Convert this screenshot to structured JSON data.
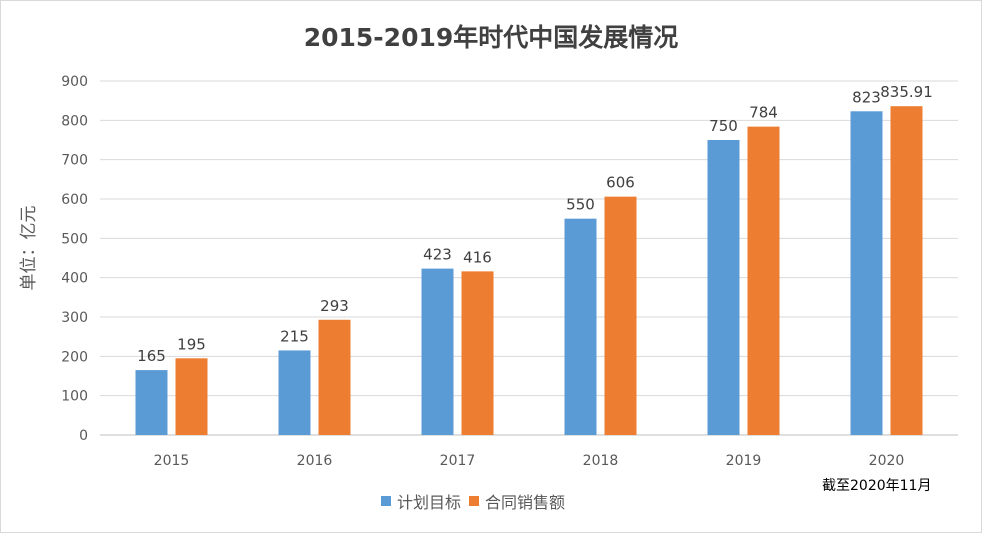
{
  "colors": {
    "plan": "#5b9bd5",
    "sales": "#ed7d31",
    "grid": "#d9d9d9",
    "axis": "#bfbfbf"
  },
  "chart_data": {
    "type": "bar",
    "title": "2015-2019年时代中国发展情况",
    "ylabel": "单位：亿元",
    "xlabel": "",
    "categories": [
      "2015",
      "2016",
      "2017",
      "2018",
      "2019",
      "2020"
    ],
    "series": [
      {
        "name": "计划目标",
        "values": [
          165,
          215,
          423,
          550,
          750,
          823
        ],
        "labels": [
          "165",
          "215",
          "423",
          "550",
          "750",
          "823"
        ]
      },
      {
        "name": "合同销售额",
        "values": [
          195,
          293,
          416,
          606,
          784,
          835.91
        ],
        "labels": [
          "195",
          "293",
          "416",
          "606",
          "784",
          "835.91"
        ]
      }
    ],
    "ylim": [
      0,
      900
    ],
    "yticks": [
      "0",
      "100",
      "200",
      "300",
      "400",
      "500",
      "600",
      "700",
      "800",
      "900"
    ],
    "grid": true,
    "legend_position": "bottom",
    "annotation": "截至2020年11月"
  }
}
